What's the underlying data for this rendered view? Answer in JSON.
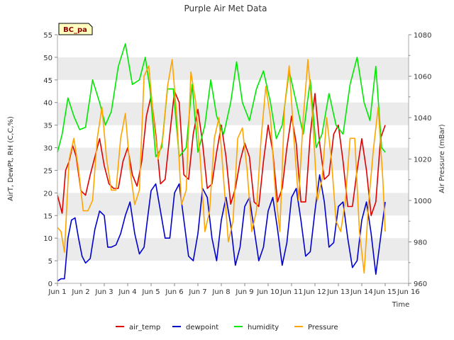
{
  "chart_data": {
    "type": "line",
    "title": "Purple Air Met Data",
    "xlabel": "Time",
    "ylabel_left": "AirT, DewPt, RH (C,C,%)",
    "ylabel_right": "Air Pressure (mBar)",
    "badge": "BC_pa",
    "grid": "horizontal bands",
    "legend_position": "bottom-center",
    "xlim": [
      1,
      16
    ],
    "ylim_left": [
      0,
      55
    ],
    "ylim_right": [
      960,
      1080
    ],
    "x_ticks": [
      1,
      2,
      3,
      4,
      5,
      6,
      7,
      8,
      9,
      10,
      11,
      12,
      13,
      14,
      15,
      16
    ],
    "x_tick_labels": [
      "Jun 1",
      "Jun 2",
      "Jun 3",
      "Jun 4",
      "Jun 5",
      "Jun 6",
      "Jun 7",
      "Jun 8",
      "Jun 9",
      "Jun 10",
      "Jun 11",
      "Jun 12",
      "Jun 13",
      "Jun 14",
      "Jun 15",
      "Jun 16"
    ],
    "y_left_ticks": [
      0,
      5,
      10,
      15,
      20,
      25,
      30,
      35,
      40,
      45,
      50,
      55
    ],
    "y_right_ticks": [
      960,
      980,
      1000,
      1020,
      1040,
      1060,
      1080
    ],
    "series": [
      {
        "name": "air_temp",
        "color": "#e00000",
        "axis": "left",
        "x": [
          1.0,
          1.2,
          1.35,
          1.5,
          1.65,
          1.8,
          2.0,
          2.2,
          2.4,
          2.6,
          2.8,
          3.0,
          3.2,
          3.4,
          3.6,
          3.8,
          4.0,
          4.2,
          4.4,
          4.6,
          4.8,
          5.0,
          5.2,
          5.4,
          5.6,
          5.8,
          6.0,
          6.2,
          6.4,
          6.6,
          6.8,
          7.0,
          7.2,
          7.4,
          7.6,
          7.8,
          8.0,
          8.2,
          8.4,
          8.6,
          8.8,
          9.0,
          9.2,
          9.4,
          9.6,
          9.8,
          10.0,
          10.2,
          10.4,
          10.6,
          10.8,
          11.0,
          11.2,
          11.4,
          11.6,
          11.8,
          12.0,
          12.2,
          12.4,
          12.6,
          12.8,
          13.0,
          13.2,
          13.4,
          13.6,
          13.8,
          14.0,
          14.2,
          14.4,
          14.6,
          14.8,
          15.0
        ],
        "y": [
          19.5,
          15.5,
          25,
          27,
          30.5,
          28,
          20.5,
          19.5,
          24,
          28,
          32,
          26,
          22,
          21,
          21,
          27,
          30,
          24,
          21.5,
          27,
          37,
          41.5,
          33,
          22,
          23,
          33,
          42.5,
          40,
          24,
          23,
          33,
          38.5,
          31,
          21,
          22,
          29,
          35,
          28,
          17.5,
          21,
          27,
          31,
          28,
          18,
          17,
          27,
          35,
          29,
          18,
          21,
          30,
          37,
          31,
          18,
          18,
          33,
          42,
          31,
          23,
          24,
          33,
          35,
          27,
          17,
          17,
          25,
          32,
          25,
          15,
          18,
          32,
          35
        ]
      },
      {
        "name": "dewpoint",
        "color": "#0000cc",
        "axis": "left",
        "x": [
          1.0,
          1.15,
          1.3,
          1.45,
          1.6,
          1.75,
          1.9,
          2.05,
          2.2,
          2.4,
          2.6,
          2.8,
          3.0,
          3.15,
          3.3,
          3.5,
          3.7,
          3.9,
          4.1,
          4.3,
          4.5,
          4.7,
          4.85,
          5.0,
          5.2,
          5.4,
          5.6,
          5.8,
          6.0,
          6.2,
          6.4,
          6.6,
          6.8,
          7.0,
          7.2,
          7.4,
          7.6,
          7.8,
          8.0,
          8.2,
          8.4,
          8.6,
          8.8,
          9.0,
          9.2,
          9.4,
          9.6,
          9.8,
          10.0,
          10.2,
          10.4,
          10.6,
          10.8,
          11.0,
          11.2,
          11.4,
          11.6,
          11.8,
          12.0,
          12.2,
          12.4,
          12.6,
          12.8,
          13.0,
          13.2,
          13.4,
          13.6,
          13.8,
          14.0,
          14.2,
          14.4,
          14.6,
          14.8,
          15.0
        ],
        "y": [
          0.5,
          1,
          1,
          10,
          14,
          14.5,
          10,
          6,
          4.5,
          5.5,
          12,
          16,
          15,
          8,
          8,
          8.5,
          11,
          15,
          18,
          11,
          6.5,
          8,
          14.5,
          20.5,
          22,
          16,
          10,
          10,
          20,
          22,
          14,
          6,
          5,
          11,
          21,
          19,
          10,
          5,
          14,
          19,
          13,
          4,
          8,
          17,
          19,
          12,
          5,
          8,
          16,
          19,
          12,
          4,
          9,
          19,
          21,
          14,
          6,
          7,
          16,
          24,
          18,
          8,
          9,
          17,
          18,
          10,
          3.5,
          5,
          14,
          18,
          11,
          2,
          10,
          18
        ]
      },
      {
        "name": "humidity",
        "color": "#00e800",
        "axis": "left",
        "x": [
          1.0,
          1.2,
          1.45,
          1.7,
          1.95,
          2.2,
          2.5,
          2.8,
          3.05,
          3.3,
          3.6,
          3.9,
          4.2,
          4.5,
          4.75,
          4.95,
          5.2,
          5.45,
          5.7,
          5.95,
          6.2,
          6.5,
          6.75,
          7.0,
          7.3,
          7.55,
          7.8,
          8.1,
          8.4,
          8.65,
          8.9,
          9.2,
          9.5,
          9.8,
          10.1,
          10.35,
          10.6,
          10.9,
          11.2,
          11.5,
          11.8,
          12.05,
          12.3,
          12.6,
          12.9,
          13.2,
          13.5,
          13.8,
          14.1,
          14.35,
          14.6,
          14.85,
          15.0
        ],
        "y": [
          29,
          33,
          41,
          37,
          34,
          34.5,
          45,
          40,
          35,
          38,
          48,
          53,
          44,
          45,
          50,
          43,
          28,
          30,
          43,
          43,
          28,
          30,
          44,
          29,
          35,
          45,
          37,
          33,
          40,
          49,
          40,
          36,
          43,
          47,
          40,
          32,
          35,
          47,
          40,
          33,
          45,
          30,
          33,
          42,
          35,
          33,
          44,
          50,
          40,
          36,
          48,
          30,
          29
        ]
      },
      {
        "name": "Pressure",
        "color": "#ffa500",
        "axis": "right",
        "x": [
          1.0,
          1.15,
          1.3,
          1.5,
          1.7,
          1.9,
          2.1,
          2.3,
          2.5,
          2.7,
          2.9,
          3.1,
          3.3,
          3.5,
          3.7,
          3.9,
          4.1,
          4.3,
          4.5,
          4.7,
          4.9,
          5.1,
          5.3,
          5.5,
          5.7,
          5.9,
          6.1,
          6.3,
          6.5,
          6.7,
          6.9,
          7.1,
          7.3,
          7.5,
          7.7,
          7.9,
          8.1,
          8.3,
          8.5,
          8.7,
          8.9,
          9.1,
          9.3,
          9.5,
          9.7,
          9.9,
          10.1,
          10.3,
          10.5,
          10.7,
          10.9,
          11.1,
          11.3,
          11.5,
          11.7,
          11.9,
          12.1,
          12.3,
          12.5,
          12.7,
          12.9,
          13.1,
          13.3,
          13.5,
          13.7,
          13.9,
          14.1,
          14.3,
          14.5,
          14.7,
          14.9,
          15.0
        ],
        "y": [
          987,
          985,
          975,
          1020,
          1030,
          1015,
          995,
          995,
          1000,
          1030,
          1045,
          1020,
          1005,
          1005,
          1030,
          1042,
          1015,
          998,
          1005,
          1060,
          1065,
          1040,
          1020,
          1030,
          1055,
          1068,
          1040,
          998,
          1005,
          1062,
          1048,
          1020,
          985,
          995,
          1030,
          1040,
          1010,
          980,
          990,
          1030,
          1035,
          1015,
          985,
          995,
          1030,
          1055,
          1040,
          1005,
          985,
          1045,
          1065,
          1030,
          1000,
          1040,
          1068,
          1040,
          1000,
          1010,
          1040,
          1020,
          990,
          985,
          1000,
          1030,
          1030,
          985,
          965,
          1000,
          1025,
          1045,
          1010,
          985
        ]
      }
    ]
  }
}
